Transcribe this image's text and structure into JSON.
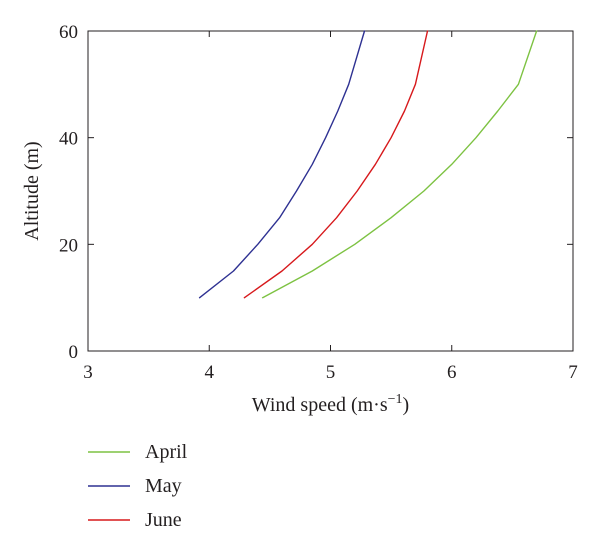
{
  "chart_data": {
    "type": "line",
    "title": "",
    "xlabel": "Wind speed (m·s",
    "xlabel_superscript": "−1",
    "xlabel_suffix": ")",
    "ylabel": "Altitude (m)",
    "xlim": [
      3,
      7
    ],
    "ylim": [
      0,
      60
    ],
    "xticks": [
      3,
      4,
      5,
      6,
      7
    ],
    "yticks": [
      0,
      20,
      40,
      60
    ],
    "grid": false,
    "legend_position": "bottom-left, below plot",
    "series": [
      {
        "name": "April",
        "color": "#7dc242",
        "x": [
          4.44,
          4.85,
          5.2,
          5.5,
          5.77,
          6.0,
          6.2,
          6.38,
          6.55,
          6.7
        ],
        "y": [
          10,
          15,
          20,
          25,
          30,
          35,
          40,
          45,
          50,
          60
        ]
      },
      {
        "name": "May",
        "color": "#2e3192",
        "x": [
          3.92,
          4.2,
          4.4,
          4.58,
          4.72,
          4.85,
          4.96,
          5.06,
          5.15,
          5.28
        ],
        "y": [
          10,
          15,
          20,
          25,
          30,
          35,
          40,
          45,
          50,
          60
        ]
      },
      {
        "name": "June",
        "color": "#d7191c",
        "x": [
          4.29,
          4.6,
          4.85,
          5.05,
          5.22,
          5.37,
          5.5,
          5.61,
          5.7,
          5.8
        ],
        "y": [
          10,
          15,
          20,
          25,
          30,
          35,
          40,
          45,
          50,
          60
        ]
      }
    ]
  }
}
